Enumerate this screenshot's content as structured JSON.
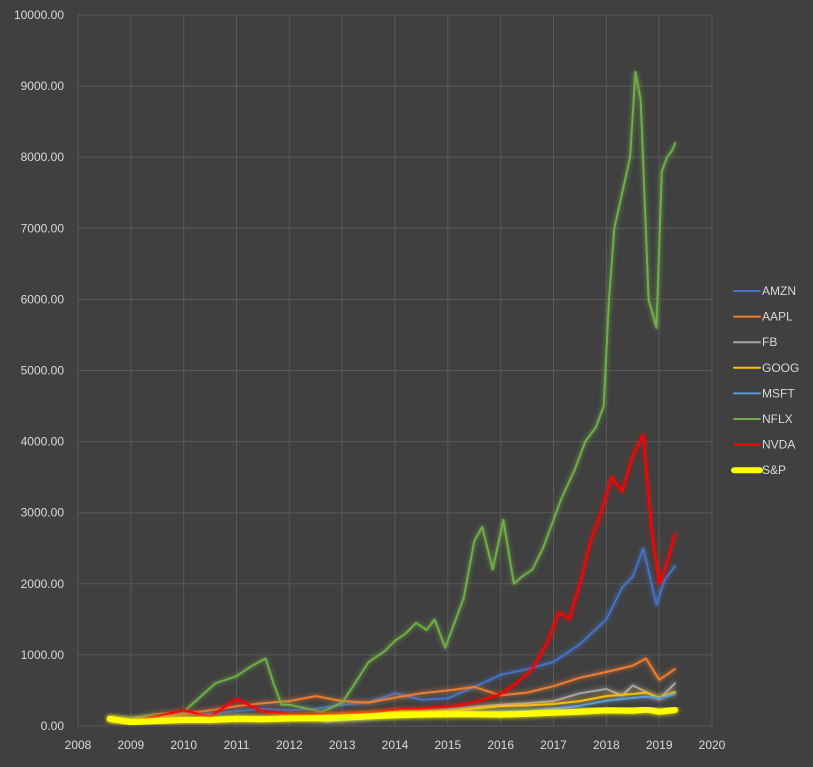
{
  "chart_data": {
    "type": "line",
    "title": "",
    "xlabel": "",
    "ylabel": "",
    "xlim": [
      2008,
      2020
    ],
    "ylim": [
      0,
      10000
    ],
    "x_ticks": [
      "2008",
      "2009",
      "2010",
      "2011",
      "2012",
      "2013",
      "2014",
      "2015",
      "2016",
      "2017",
      "2018",
      "2019",
      "2020"
    ],
    "y_ticks": [
      "0.00",
      "1000.00",
      "2000.00",
      "3000.00",
      "4000.00",
      "5000.00",
      "6000.00",
      "7000.00",
      "8000.00",
      "9000.00",
      "10000.00"
    ],
    "grid": true,
    "legend_position": "right",
    "series": [
      {
        "name": "AMZN",
        "color": "#4472c4",
        "x": [
          2008.6,
          2009.0,
          2009.5,
          2010.0,
          2010.5,
          2011.0,
          2011.5,
          2012.0,
          2012.5,
          2013.0,
          2013.5,
          2014.0,
          2014.5,
          2015.0,
          2015.5,
          2016.0,
          2016.5,
          2017.0,
          2017.5,
          2018.0,
          2018.3,
          2018.5,
          2018.7,
          2018.95,
          2019.1,
          2019.3
        ],
        "y": [
          100,
          90,
          120,
          180,
          170,
          210,
          240,
          220,
          240,
          300,
          330,
          460,
          370,
          390,
          550,
          720,
          800,
          900,
          1150,
          1500,
          1950,
          2100,
          2500,
          1700,
          2050,
          2250
        ]
      },
      {
        "name": "AAPL",
        "color": "#ed7d31",
        "x": [
          2008.6,
          2009.0,
          2009.5,
          2010.0,
          2010.5,
          2011.0,
          2011.5,
          2012.0,
          2012.5,
          2013.0,
          2013.5,
          2014.0,
          2014.5,
          2015.0,
          2015.5,
          2016.0,
          2016.5,
          2017.0,
          2017.5,
          2018.0,
          2018.5,
          2018.75,
          2019.0,
          2019.3
        ],
        "y": [
          100,
          70,
          120,
          170,
          220,
          280,
          320,
          350,
          420,
          350,
          330,
          400,
          460,
          500,
          550,
          430,
          470,
          560,
          680,
          760,
          850,
          950,
          650,
          800
        ]
      },
      {
        "name": "FB",
        "color": "#a5a5a5",
        "x": [
          2012.4,
          2012.7,
          2013.0,
          2013.5,
          2014.0,
          2014.5,
          2015.0,
          2015.5,
          2016.0,
          2016.5,
          2017.0,
          2017.5,
          2018.0,
          2018.3,
          2018.5,
          2018.75,
          2019.0,
          2019.3
        ],
        "y": [
          100,
          60,
          80,
          110,
          160,
          200,
          230,
          270,
          300,
          320,
          350,
          460,
          520,
          430,
          570,
          480,
          380,
          600
        ]
      },
      {
        "name": "GOOG",
        "color": "#ffc000",
        "x": [
          2008.6,
          2009.0,
          2009.5,
          2010.0,
          2010.5,
          2011.0,
          2011.5,
          2012.0,
          2012.5,
          2013.0,
          2013.5,
          2014.0,
          2014.5,
          2015.0,
          2015.5,
          2016.0,
          2016.5,
          2017.0,
          2017.5,
          2018.0,
          2018.5,
          2018.75,
          2019.0,
          2019.3
        ],
        "y": [
          100,
          70,
          95,
          110,
          95,
          115,
          110,
          125,
          135,
          160,
          175,
          210,
          200,
          200,
          245,
          280,
          290,
          310,
          350,
          420,
          450,
          470,
          400,
          480
        ]
      },
      {
        "name": "MSFT",
        "color": "#5b9bd5",
        "x": [
          2008.6,
          2009.0,
          2009.5,
          2010.0,
          2010.5,
          2011.0,
          2011.5,
          2012.0,
          2012.5,
          2013.0,
          2013.5,
          2014.0,
          2014.5,
          2015.0,
          2015.5,
          2016.0,
          2016.5,
          2017.0,
          2017.5,
          2018.0,
          2018.5,
          2018.75,
          2019.0,
          2019.3
        ],
        "y": [
          100,
          75,
          95,
          105,
          90,
          100,
          95,
          110,
          115,
          115,
          130,
          145,
          165,
          175,
          185,
          200,
          215,
          245,
          285,
          355,
          395,
          410,
          390,
          450
        ]
      },
      {
        "name": "NFLX",
        "color": "#70ad47",
        "x": [
          2008.6,
          2009.0,
          2009.5,
          2010.0,
          2010.3,
          2010.6,
          2011.0,
          2011.3,
          2011.55,
          2011.7,
          2011.85,
          2012.0,
          2012.3,
          2012.6,
          2012.75,
          2013.0,
          2013.2,
          2013.5,
          2013.8,
          2014.0,
          2014.2,
          2014.4,
          2014.6,
          2014.75,
          2014.95,
          2015.1,
          2015.3,
          2015.5,
          2015.65,
          2015.85,
          2016.05,
          2016.25,
          2016.4,
          2016.6,
          2016.8,
          2016.95,
          2017.15,
          2017.4,
          2017.6,
          2017.8,
          2017.95,
          2018.05,
          2018.15,
          2018.3,
          2018.45,
          2018.55,
          2018.65,
          2018.8,
          2018.95,
          2019.05,
          2019.15,
          2019.25,
          2019.3
        ],
        "y": [
          100,
          110,
          170,
          200,
          400,
          600,
          700,
          850,
          950,
          600,
          300,
          300,
          250,
          200,
          240,
          330,
          550,
          900,
          1050,
          1200,
          1300,
          1450,
          1350,
          1500,
          1100,
          1400,
          1800,
          2600,
          2800,
          2200,
          2900,
          2000,
          2100,
          2200,
          2500,
          2800,
          3200,
          3600,
          4000,
          4200,
          4500,
          6000,
          7000,
          7500,
          8000,
          9200,
          8800,
          6000,
          5600,
          7800,
          8000,
          8100,
          8200
        ]
      },
      {
        "name": "NVDA",
        "color": "#ff0000",
        "x": [
          2008.6,
          2009.0,
          2009.5,
          2010.0,
          2010.5,
          2011.0,
          2011.5,
          2012.0,
          2012.5,
          2013.0,
          2013.5,
          2014.0,
          2014.5,
          2015.0,
          2015.5,
          2016.0,
          2016.3,
          2016.6,
          2016.9,
          2017.1,
          2017.3,
          2017.5,
          2017.7,
          2017.9,
          2018.1,
          2018.3,
          2018.5,
          2018.7,
          2018.85,
          2019.0,
          2019.15,
          2019.3
        ],
        "y": [
          100,
          60,
          140,
          220,
          130,
          380,
          200,
          170,
          170,
          170,
          190,
          230,
          250,
          270,
          330,
          450,
          600,
          800,
          1200,
          1600,
          1500,
          2000,
          2600,
          3000,
          3500,
          3300,
          3800,
          4100,
          2800,
          2000,
          2300,
          2700
        ]
      },
      {
        "name": "S&P",
        "color": "#ffff00",
        "x": [
          2008.6,
          2009.0,
          2009.5,
          2010.0,
          2010.5,
          2011.0,
          2011.5,
          2012.0,
          2012.5,
          2013.0,
          2013.5,
          2014.0,
          2014.5,
          2015.0,
          2015.5,
          2016.0,
          2016.5,
          2017.0,
          2017.5,
          2018.0,
          2018.5,
          2018.75,
          2019.0,
          2019.3
        ],
        "y": [
          100,
          55,
          70,
          85,
          85,
          100,
          95,
          105,
          110,
          120,
          135,
          150,
          160,
          165,
          165,
          160,
          170,
          185,
          200,
          220,
          215,
          230,
          200,
          225
        ]
      }
    ]
  }
}
